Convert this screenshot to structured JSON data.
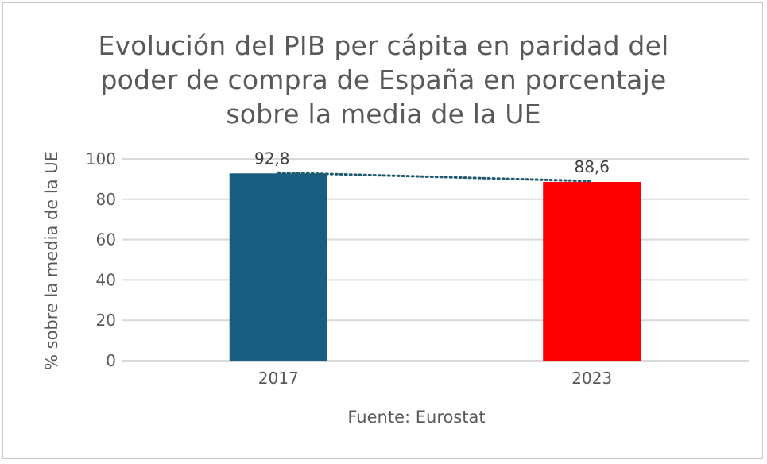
{
  "chart_data": {
    "type": "bar",
    "title_lines": [
      "Evolución del PIB per cápita en paridad del",
      "poder de compra de España en porcentaje",
      "sobre la media de la UE"
    ],
    "categories": [
      "2017",
      "2023"
    ],
    "values": [
      92.8,
      88.6
    ],
    "data_labels": [
      "92,8",
      "88,6"
    ],
    "bar_colors": [
      "#175e80",
      "#ff0000"
    ],
    "trendline": {
      "style": "dotted",
      "color": "#1f5a6e",
      "from": "2017",
      "to": "2023"
    },
    "xlabel": "",
    "ylabel": "% sobre la media de la UE",
    "ylim": [
      0,
      100
    ],
    "yticks": [
      0,
      20,
      40,
      60,
      80,
      100
    ],
    "ytick_labels": [
      "0",
      "20",
      "40",
      "60",
      "80",
      "100"
    ],
    "grid": true,
    "legend": "none",
    "source_note": "Fuente: Eurostat"
  }
}
